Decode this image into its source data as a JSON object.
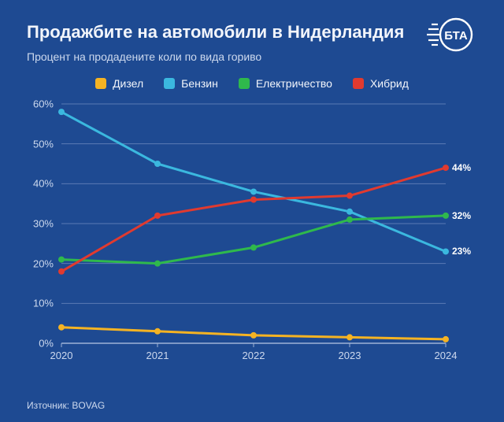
{
  "background_color": "#1e4a92",
  "text_color": "#f2f5fb",
  "subtitle_color": "#cdd9ee",
  "title": "Продажбите на автомобили в Нидерландия",
  "subtitle": "Процент на продадените коли по вида гориво",
  "source": "Източник: BOVAG",
  "logo_text": "БТА",
  "logo_color": "#ffffff",
  "chart": {
    "type": "line",
    "x_categories": [
      "2020",
      "2021",
      "2022",
      "2023",
      "2024"
    ],
    "ylim": [
      0,
      60
    ],
    "ytick_step": 10,
    "y_suffix": "%",
    "grid_color": "#5b7bb4",
    "axis_color": "#9db2d6",
    "label_color": "#cdd9ee",
    "line_width": 3,
    "marker_radius": 4,
    "label_fontsize": 13,
    "series": [
      {
        "name": "Дизел",
        "color": "#f5b323",
        "values": [
          4,
          3,
          2,
          1.5,
          1
        ],
        "show_last_label": false
      },
      {
        "name": "Бензин",
        "color": "#3bb8df",
        "values": [
          58,
          45,
          38,
          33,
          23
        ],
        "show_last_label": true
      },
      {
        "name": "Електричество",
        "color": "#2fb94c",
        "values": [
          21,
          20,
          24,
          31,
          32
        ],
        "show_last_label": true
      },
      {
        "name": "Хибрид",
        "color": "#e13a2f",
        "values": [
          18,
          32,
          36,
          37,
          44
        ],
        "show_last_label": true
      }
    ]
  }
}
